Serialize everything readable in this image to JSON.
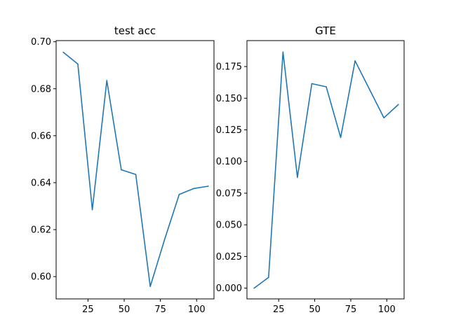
{
  "chart_data": [
    {
      "type": "line",
      "title": "test acc",
      "xlabel": "",
      "ylabel": "",
      "xlim": [
        3,
        112
      ],
      "ylim": [
        0.5905,
        0.7005
      ],
      "xticks": [
        25,
        50,
        75,
        100
      ],
      "xtick_labels": [
        "25",
        "50",
        "75",
        "100"
      ],
      "yticks": [
        0.6,
        0.62,
        0.64,
        0.66,
        0.68,
        0.7
      ],
      "ytick_labels": [
        "0.60",
        "0.62",
        "0.64",
        "0.66",
        "0.68",
        "0.70"
      ],
      "grid": false,
      "color": "#1f77b4",
      "x": [
        8,
        18,
        28,
        38,
        48,
        58,
        68,
        78,
        88,
        98,
        108
      ],
      "y": [
        0.6955,
        0.6905,
        0.6285,
        0.6835,
        0.6455,
        0.6435,
        0.5958,
        0.616,
        0.635,
        0.6375,
        0.6385
      ]
    },
    {
      "type": "line",
      "title": "GTE",
      "xlabel": "",
      "ylabel": "",
      "xlim": [
        3,
        112
      ],
      "ylim": [
        -0.0085,
        0.1955
      ],
      "xticks": [
        25,
        50,
        75,
        100
      ],
      "xtick_labels": [
        "25",
        "50",
        "75",
        "100"
      ],
      "yticks": [
        0.0,
        0.025,
        0.05,
        0.075,
        0.1,
        0.125,
        0.15,
        0.175
      ],
      "ytick_labels": [
        "0.000",
        "0.025",
        "0.050",
        "0.075",
        "0.100",
        "0.125",
        "0.150",
        "0.175"
      ],
      "grid": false,
      "color": "#1f77b4",
      "x": [
        8,
        18,
        28,
        38,
        48,
        58,
        68,
        78,
        88,
        98,
        108
      ],
      "y": [
        0.0,
        0.0085,
        0.1865,
        0.0875,
        0.1615,
        0.159,
        0.119,
        0.1795,
        0.157,
        0.1345,
        0.145
      ]
    }
  ]
}
